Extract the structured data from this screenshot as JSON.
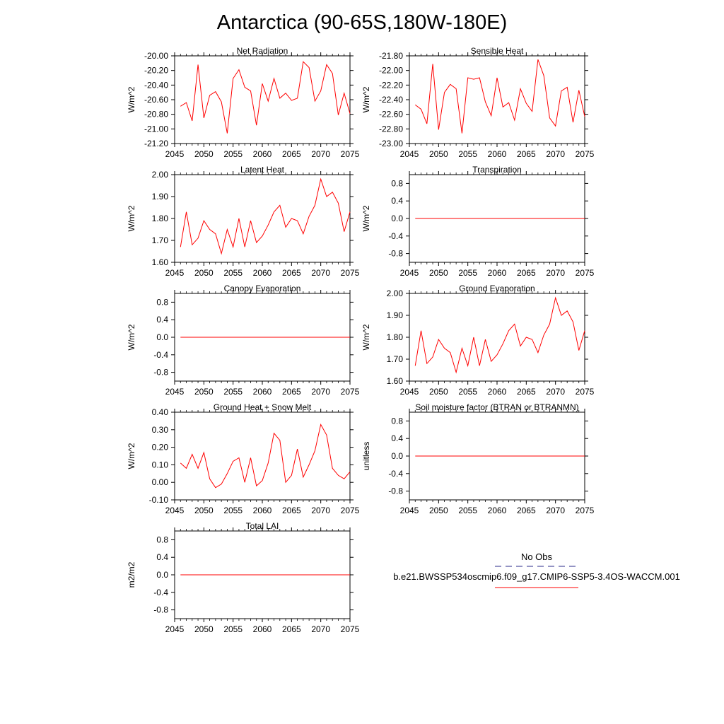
{
  "title": "Antarctica (90-65S,180W-180E)",
  "legend": {
    "obs_label": "No Obs",
    "model_label": "b.e21.BWSSP534oscmip6.f09_g17.CMIP6-SSP5-3.4OS-WACCM.001",
    "obs_color": "#2a2a8a",
    "model_color": "#ff0000"
  },
  "colors": {
    "line": "#ff0000",
    "axis": "#000000"
  },
  "chart_data": [
    {
      "type": "line",
      "title": "Net Radiation",
      "xlabel": "",
      "ylabel": "W/m^2",
      "xlim": [
        2045,
        2075
      ],
      "ylim": [
        -21.2,
        -20.0
      ],
      "xticks": [
        2045,
        2050,
        2055,
        2060,
        2065,
        2070,
        2075
      ],
      "yticks": [
        -20.0,
        -20.2,
        -20.4,
        -20.6,
        -20.8,
        -21.0,
        -21.2
      ],
      "yticklabels": [
        "-20.00",
        "-20.20",
        "-20.40",
        "-20.60",
        "-20.80",
        "-21.00",
        "-21.20"
      ],
      "x": [
        2046,
        2047,
        2048,
        2049,
        2050,
        2051,
        2052,
        2053,
        2054,
        2055,
        2056,
        2057,
        2058,
        2059,
        2060,
        2061,
        2062,
        2063,
        2064,
        2065,
        2066,
        2067,
        2068,
        2069,
        2070,
        2071,
        2072,
        2073,
        2074,
        2075
      ],
      "y": [
        -20.69,
        -20.64,
        -20.89,
        -20.12,
        -20.85,
        -20.54,
        -20.49,
        -20.63,
        -21.06,
        -20.31,
        -20.19,
        -20.43,
        -20.48,
        -20.95,
        -20.38,
        -20.62,
        -20.31,
        -20.58,
        -20.51,
        -20.61,
        -20.58,
        -20.08,
        -20.16,
        -20.62,
        -20.48,
        -20.12,
        -20.24,
        -20.81,
        -20.51,
        -20.79
      ]
    },
    {
      "type": "line",
      "title": "Sensible Heat",
      "xlabel": "",
      "ylabel": "W/m^2",
      "xlim": [
        2045,
        2075
      ],
      "ylim": [
        -23.0,
        -21.8
      ],
      "xticks": [
        2045,
        2050,
        2055,
        2060,
        2065,
        2070,
        2075
      ],
      "yticks": [
        -21.8,
        -22.0,
        -22.2,
        -22.4,
        -22.6,
        -22.8,
        -23.0
      ],
      "yticklabels": [
        "-21.80",
        "-22.00",
        "-22.20",
        "-22.40",
        "-22.60",
        "-22.80",
        "-23.00"
      ],
      "x": [
        2046,
        2047,
        2048,
        2049,
        2050,
        2051,
        2052,
        2053,
        2054,
        2055,
        2056,
        2057,
        2058,
        2059,
        2060,
        2061,
        2062,
        2063,
        2064,
        2065,
        2066,
        2067,
        2068,
        2069,
        2070,
        2071,
        2072,
        2073,
        2074,
        2075
      ],
      "y": [
        -22.47,
        -22.53,
        -22.73,
        -21.91,
        -22.81,
        -22.3,
        -22.19,
        -22.25,
        -22.86,
        -22.1,
        -22.12,
        -22.1,
        -22.43,
        -22.62,
        -22.1,
        -22.5,
        -22.44,
        -22.68,
        -22.25,
        -22.45,
        -22.56,
        -21.85,
        -22.07,
        -22.65,
        -22.76,
        -22.28,
        -22.23,
        -22.71,
        -22.27,
        -22.63
      ]
    },
    {
      "type": "line",
      "title": "Latent Heat",
      "xlabel": "",
      "ylabel": "W/m^2",
      "xlim": [
        2045,
        2075
      ],
      "ylim": [
        1.6,
        2.0
      ],
      "xticks": [
        2045,
        2050,
        2055,
        2060,
        2065,
        2070,
        2075
      ],
      "yticks": [
        2.0,
        1.9,
        1.8,
        1.7,
        1.6
      ],
      "yticklabels": [
        "2.00",
        "1.90",
        "1.80",
        "1.70",
        "1.60"
      ],
      "x": [
        2046,
        2047,
        2048,
        2049,
        2050,
        2051,
        2052,
        2053,
        2054,
        2055,
        2056,
        2057,
        2058,
        2059,
        2060,
        2061,
        2062,
        2063,
        2064,
        2065,
        2066,
        2067,
        2068,
        2069,
        2070,
        2071,
        2072,
        2073,
        2074,
        2075
      ],
      "y": [
        1.67,
        1.83,
        1.68,
        1.71,
        1.79,
        1.75,
        1.73,
        1.64,
        1.75,
        1.67,
        1.8,
        1.67,
        1.79,
        1.69,
        1.72,
        1.77,
        1.83,
        1.86,
        1.76,
        1.8,
        1.79,
        1.73,
        1.81,
        1.86,
        1.98,
        1.9,
        1.92,
        1.87,
        1.74,
        1.83
      ]
    },
    {
      "type": "line",
      "title": "Transpiration",
      "xlabel": "",
      "ylabel": "W/m^2",
      "xlim": [
        2045,
        2075
      ],
      "ylim": [
        -1.0,
        1.0
      ],
      "xticks": [
        2045,
        2050,
        2055,
        2060,
        2065,
        2070,
        2075
      ],
      "yticks": [
        0.8,
        0.4,
        0.0,
        -0.4,
        -0.8
      ],
      "yticklabels": [
        "0.8",
        "0.4",
        "0.0",
        "-0.4",
        "-0.8"
      ],
      "x": [
        2046,
        2075
      ],
      "y": [
        0.0,
        0.0
      ]
    },
    {
      "type": "line",
      "title": "Canopy Evaporation",
      "xlabel": "",
      "ylabel": "W/m^2",
      "xlim": [
        2045,
        2075
      ],
      "ylim": [
        -1.0,
        1.0
      ],
      "xticks": [
        2045,
        2050,
        2055,
        2060,
        2065,
        2070,
        2075
      ],
      "yticks": [
        0.8,
        0.4,
        0.0,
        -0.4,
        -0.8
      ],
      "yticklabels": [
        "0.8",
        "0.4",
        "0.0",
        "-0.4",
        "-0.8"
      ],
      "x": [
        2046,
        2075
      ],
      "y": [
        0.0,
        0.0
      ]
    },
    {
      "type": "line",
      "title": "Ground Evaporation",
      "xlabel": "",
      "ylabel": "W/m^2",
      "xlim": [
        2045,
        2075
      ],
      "ylim": [
        1.6,
        2.0
      ],
      "xticks": [
        2045,
        2050,
        2055,
        2060,
        2065,
        2070,
        2075
      ],
      "yticks": [
        2.0,
        1.9,
        1.8,
        1.7,
        1.6
      ],
      "yticklabels": [
        "2.00",
        "1.90",
        "1.80",
        "1.70",
        "1.60"
      ],
      "x": [
        2046,
        2047,
        2048,
        2049,
        2050,
        2051,
        2052,
        2053,
        2054,
        2055,
        2056,
        2057,
        2058,
        2059,
        2060,
        2061,
        2062,
        2063,
        2064,
        2065,
        2066,
        2067,
        2068,
        2069,
        2070,
        2071,
        2072,
        2073,
        2074,
        2075
      ],
      "y": [
        1.67,
        1.83,
        1.68,
        1.71,
        1.79,
        1.75,
        1.73,
        1.64,
        1.75,
        1.67,
        1.8,
        1.67,
        1.79,
        1.69,
        1.72,
        1.77,
        1.83,
        1.86,
        1.76,
        1.8,
        1.79,
        1.73,
        1.81,
        1.86,
        1.98,
        1.9,
        1.92,
        1.87,
        1.74,
        1.83
      ]
    },
    {
      "type": "line",
      "title": "Ground Heat + Snow Melt",
      "xlabel": "",
      "ylabel": "W/m^2",
      "xlim": [
        2045,
        2075
      ],
      "ylim": [
        -0.1,
        0.4
      ],
      "xticks": [
        2045,
        2050,
        2055,
        2060,
        2065,
        2070,
        2075
      ],
      "yticks": [
        0.4,
        0.3,
        0.2,
        0.1,
        0.0,
        -0.1
      ],
      "yticklabels": [
        "0.40",
        "0.30",
        "0.20",
        "0.10",
        "0.00",
        "-0.10"
      ],
      "x": [
        2046,
        2047,
        2048,
        2049,
        2050,
        2051,
        2052,
        2053,
        2054,
        2055,
        2056,
        2057,
        2058,
        2059,
        2060,
        2061,
        2062,
        2063,
        2064,
        2065,
        2066,
        2067,
        2068,
        2069,
        2070,
        2071,
        2072,
        2073,
        2074,
        2075
      ],
      "y": [
        0.11,
        0.08,
        0.16,
        0.08,
        0.17,
        0.02,
        -0.03,
        -0.01,
        0.05,
        0.12,
        0.14,
        0.0,
        0.14,
        -0.02,
        0.01,
        0.11,
        0.28,
        0.24,
        0.0,
        0.04,
        0.19,
        0.03,
        0.1,
        0.18,
        0.33,
        0.27,
        0.08,
        0.04,
        0.02,
        0.06
      ]
    },
    {
      "type": "line",
      "title": "Soil moisture factor (BTRAN or BTRANMN)",
      "xlabel": "",
      "ylabel": "unitless",
      "xlim": [
        2045,
        2075
      ],
      "ylim": [
        -1.0,
        1.0
      ],
      "xticks": [
        2045,
        2050,
        2055,
        2060,
        2065,
        2070,
        2075
      ],
      "yticks": [
        0.8,
        0.4,
        0.0,
        -0.4,
        -0.8
      ],
      "yticklabels": [
        "0.8",
        "0.4",
        "0.0",
        "-0.4",
        "-0.8"
      ],
      "x": [
        2046,
        2075
      ],
      "y": [
        0.0,
        0.0
      ]
    },
    {
      "type": "line",
      "title": "Total LAI",
      "xlabel": "",
      "ylabel": "m2/m2",
      "xlim": [
        2045,
        2075
      ],
      "ylim": [
        -1.0,
        1.0
      ],
      "xticks": [
        2045,
        2050,
        2055,
        2060,
        2065,
        2070,
        2075
      ],
      "yticks": [
        0.8,
        0.4,
        0.0,
        -0.4,
        -0.8
      ],
      "yticklabels": [
        "0.8",
        "0.4",
        "0.0",
        "-0.4",
        "-0.8"
      ],
      "x": [
        2046,
        2075
      ],
      "y": [
        0.0,
        0.0
      ]
    }
  ]
}
